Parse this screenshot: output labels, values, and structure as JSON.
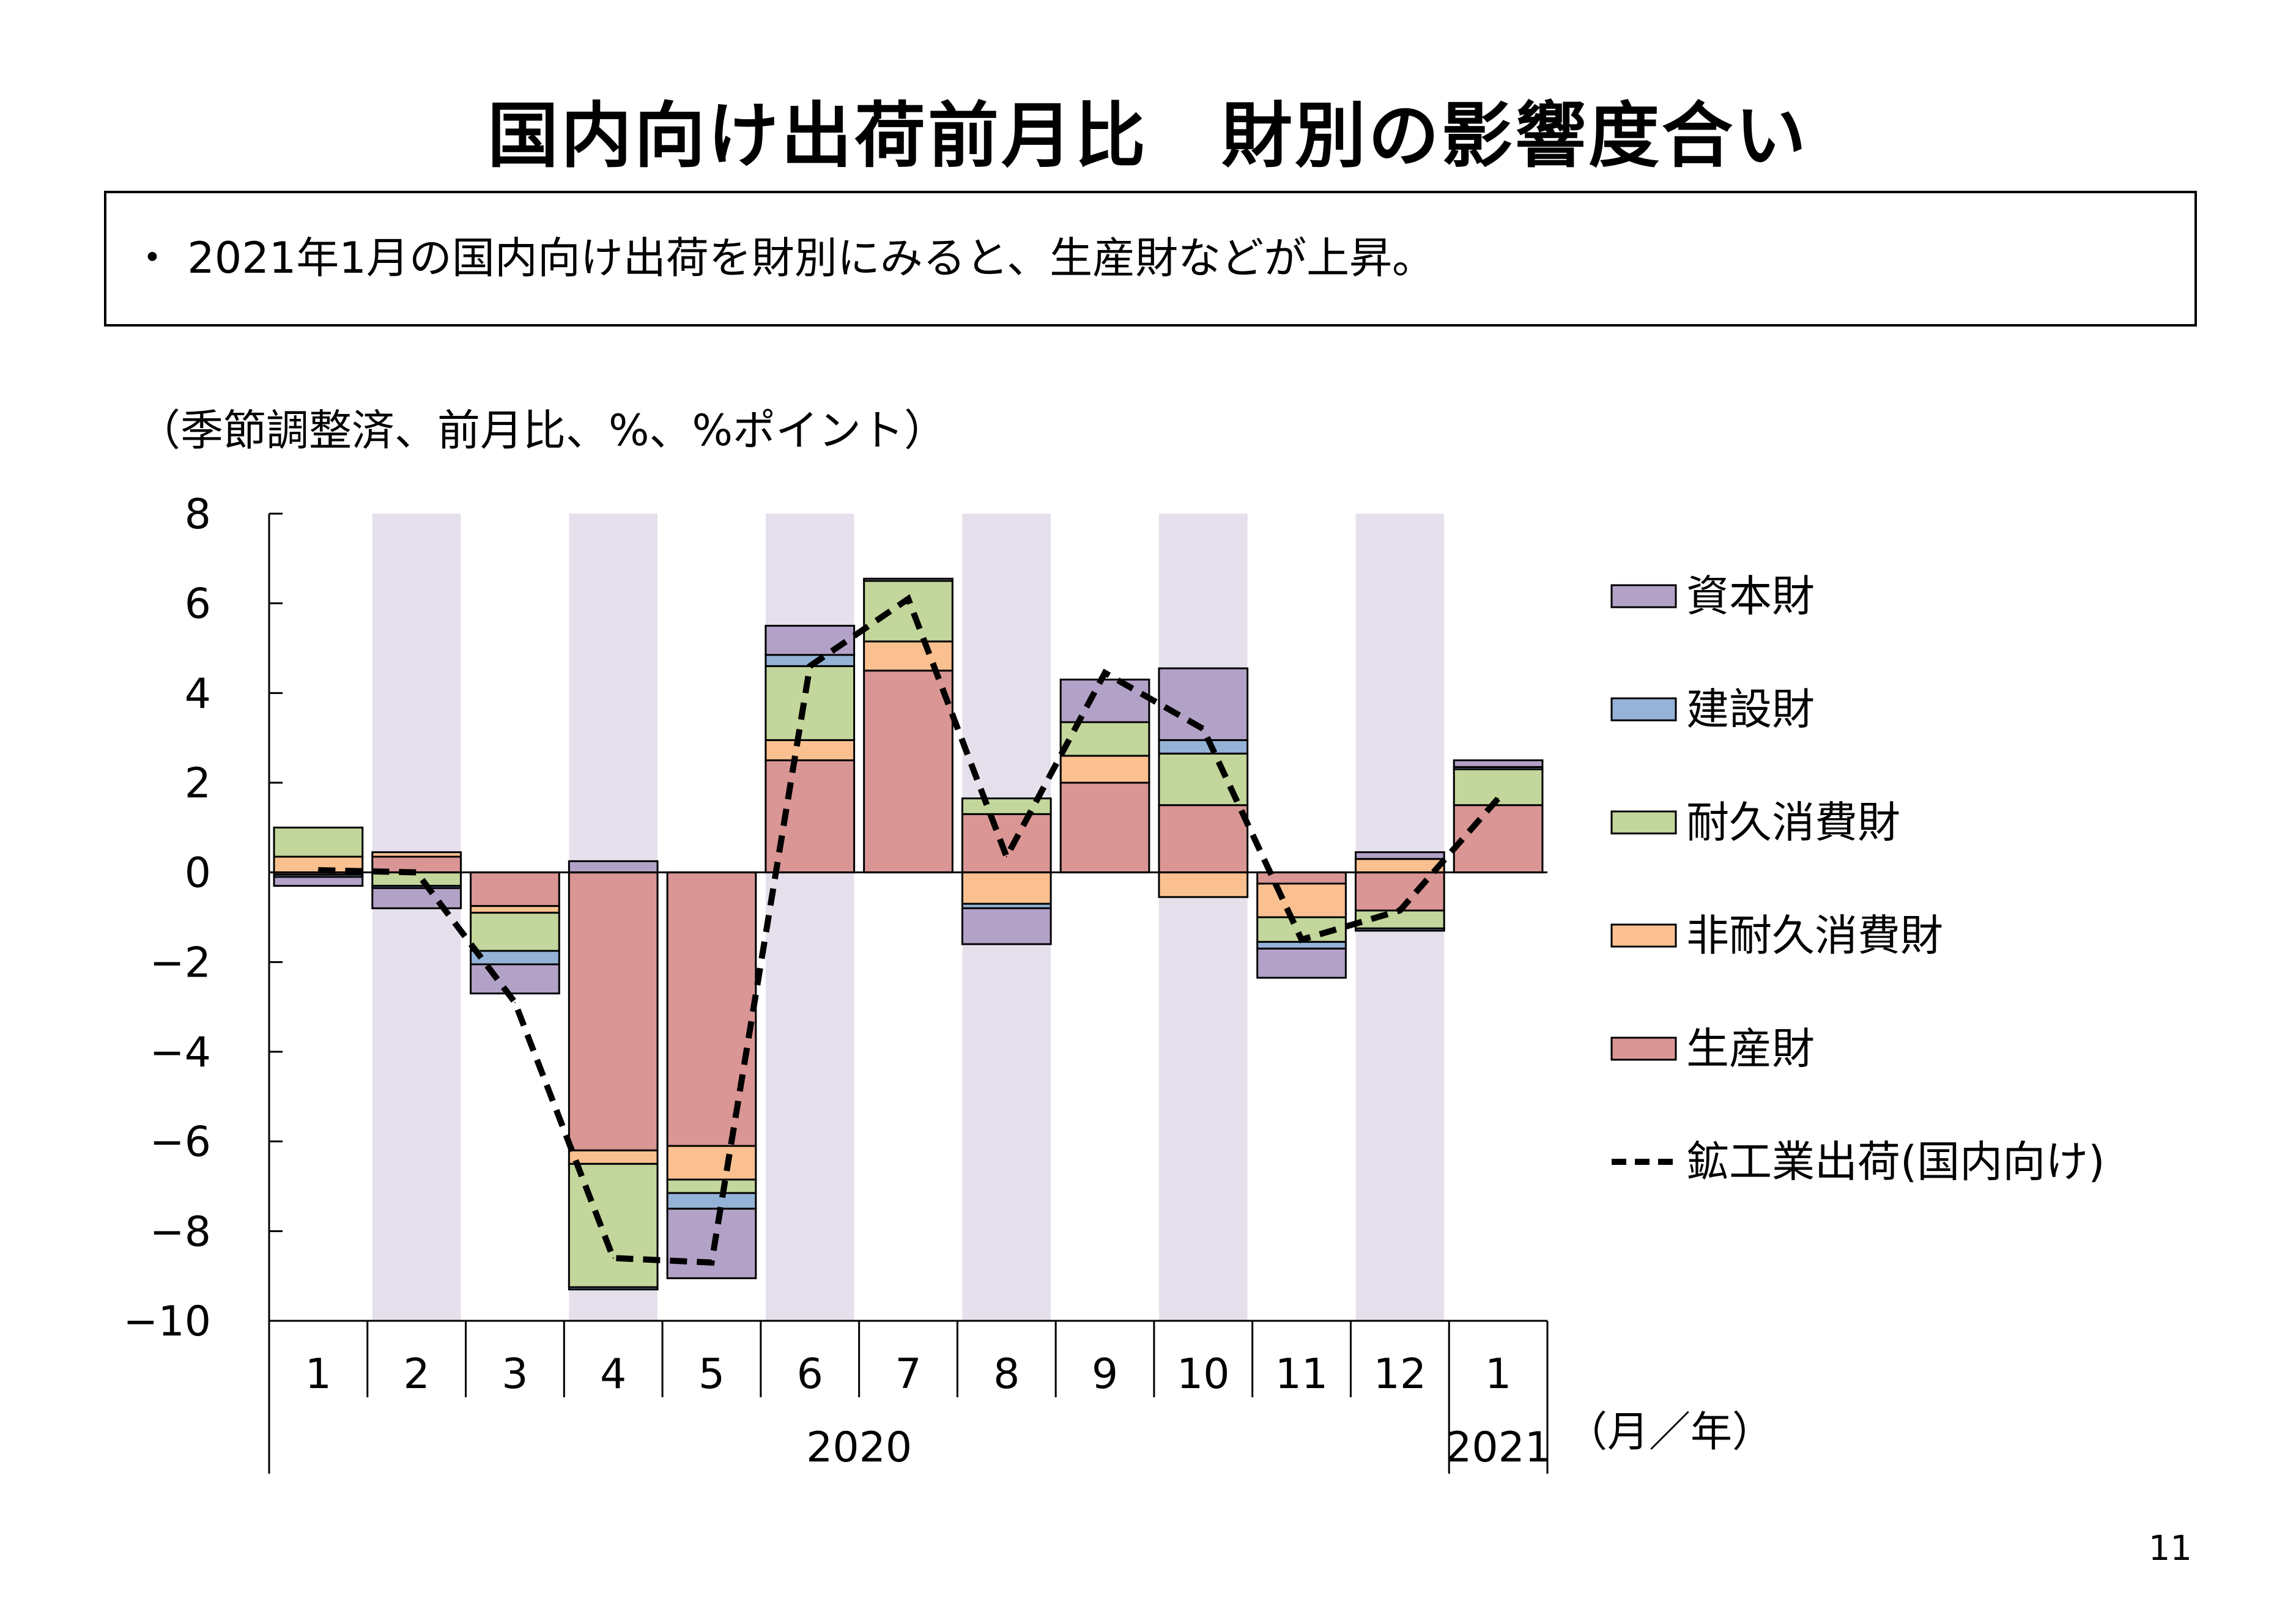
{
  "title": "国内向け出荷前月比　財別の影響度合い",
  "summary": "・ 2021年1月の国内向け出荷を財別にみると、生産財などが上昇。",
  "unit_note": "（季節調整済、前月比、%、%ポイント）",
  "page_number": "11",
  "colors": {
    "shade": "#e6e0ec",
    "capital": "#b3a2c7",
    "construction": "#95b3d7",
    "durable": "#c3d69b",
    "nondurable": "#fac090",
    "producer": "#d99694",
    "line": "#000000"
  },
  "chart_data": {
    "type": "bar",
    "stacked": true,
    "categories": [
      "1",
      "2",
      "3",
      "4",
      "5",
      "6",
      "7",
      "8",
      "9",
      "10",
      "11",
      "12",
      "1"
    ],
    "year_labels": {
      "2020": "2020",
      "2021": "2021"
    },
    "xlabel": "（月／年）",
    "ylim": [
      -10,
      8
    ],
    "yticks": [
      "8",
      "6",
      "4",
      "2",
      "0",
      "−2",
      "−4",
      "−6",
      "−8",
      "−10"
    ],
    "shaded_columns": [
      1,
      3,
      5,
      7,
      9,
      11
    ],
    "series": [
      {
        "name": "生産財",
        "key": "producer",
        "values": [
          -0.05,
          0.35,
          -0.75,
          -6.2,
          -6.1,
          2.5,
          4.5,
          1.3,
          2.0,
          1.5,
          -0.25,
          -0.85,
          1.5
        ]
      },
      {
        "name": "非耐久消費財",
        "key": "nondurable",
        "values": [
          0.35,
          0.1,
          -0.15,
          -0.3,
          -0.75,
          0.45,
          0.65,
          -0.7,
          0.6,
          -0.55,
          -0.75,
          0.3,
          0.0
        ]
      },
      {
        "name": "耐久消費財",
        "key": "durable",
        "values": [
          0.65,
          -0.3,
          -0.85,
          -2.75,
          -0.3,
          1.65,
          1.35,
          0.35,
          0.75,
          1.15,
          -0.55,
          -0.4,
          0.8
        ]
      },
      {
        "name": "建設財",
        "key": "construction",
        "values": [
          -0.05,
          -0.05,
          -0.3,
          -0.05,
          -0.35,
          0.25,
          0.0,
          -0.1,
          0.0,
          0.3,
          -0.15,
          -0.05,
          0.05
        ]
      },
      {
        "name": "資本財",
        "key": "capital",
        "values": [
          -0.2,
          -0.45,
          -0.65,
          0.25,
          -1.55,
          0.65,
          0.05,
          -0.8,
          0.95,
          1.6,
          -0.65,
          0.15,
          0.15
        ]
      }
    ],
    "line": {
      "name": "鉱工業出荷(国内向け)",
      "values": [
        0.05,
        0.0,
        -2.9,
        -8.6,
        -8.7,
        4.6,
        6.1,
        0.35,
        4.45,
        3.2,
        -1.5,
        -0.85,
        1.65
      ]
    },
    "legend_order": [
      "capital",
      "construction",
      "durable",
      "nondurable",
      "producer",
      "line"
    ],
    "legend_labels": {
      "capital": "資本財",
      "construction": "建設財",
      "durable": "耐久消費財",
      "nondurable": "非耐久消費財",
      "producer": "生産財",
      "line": "鉱工業出荷(国内向け)"
    }
  }
}
